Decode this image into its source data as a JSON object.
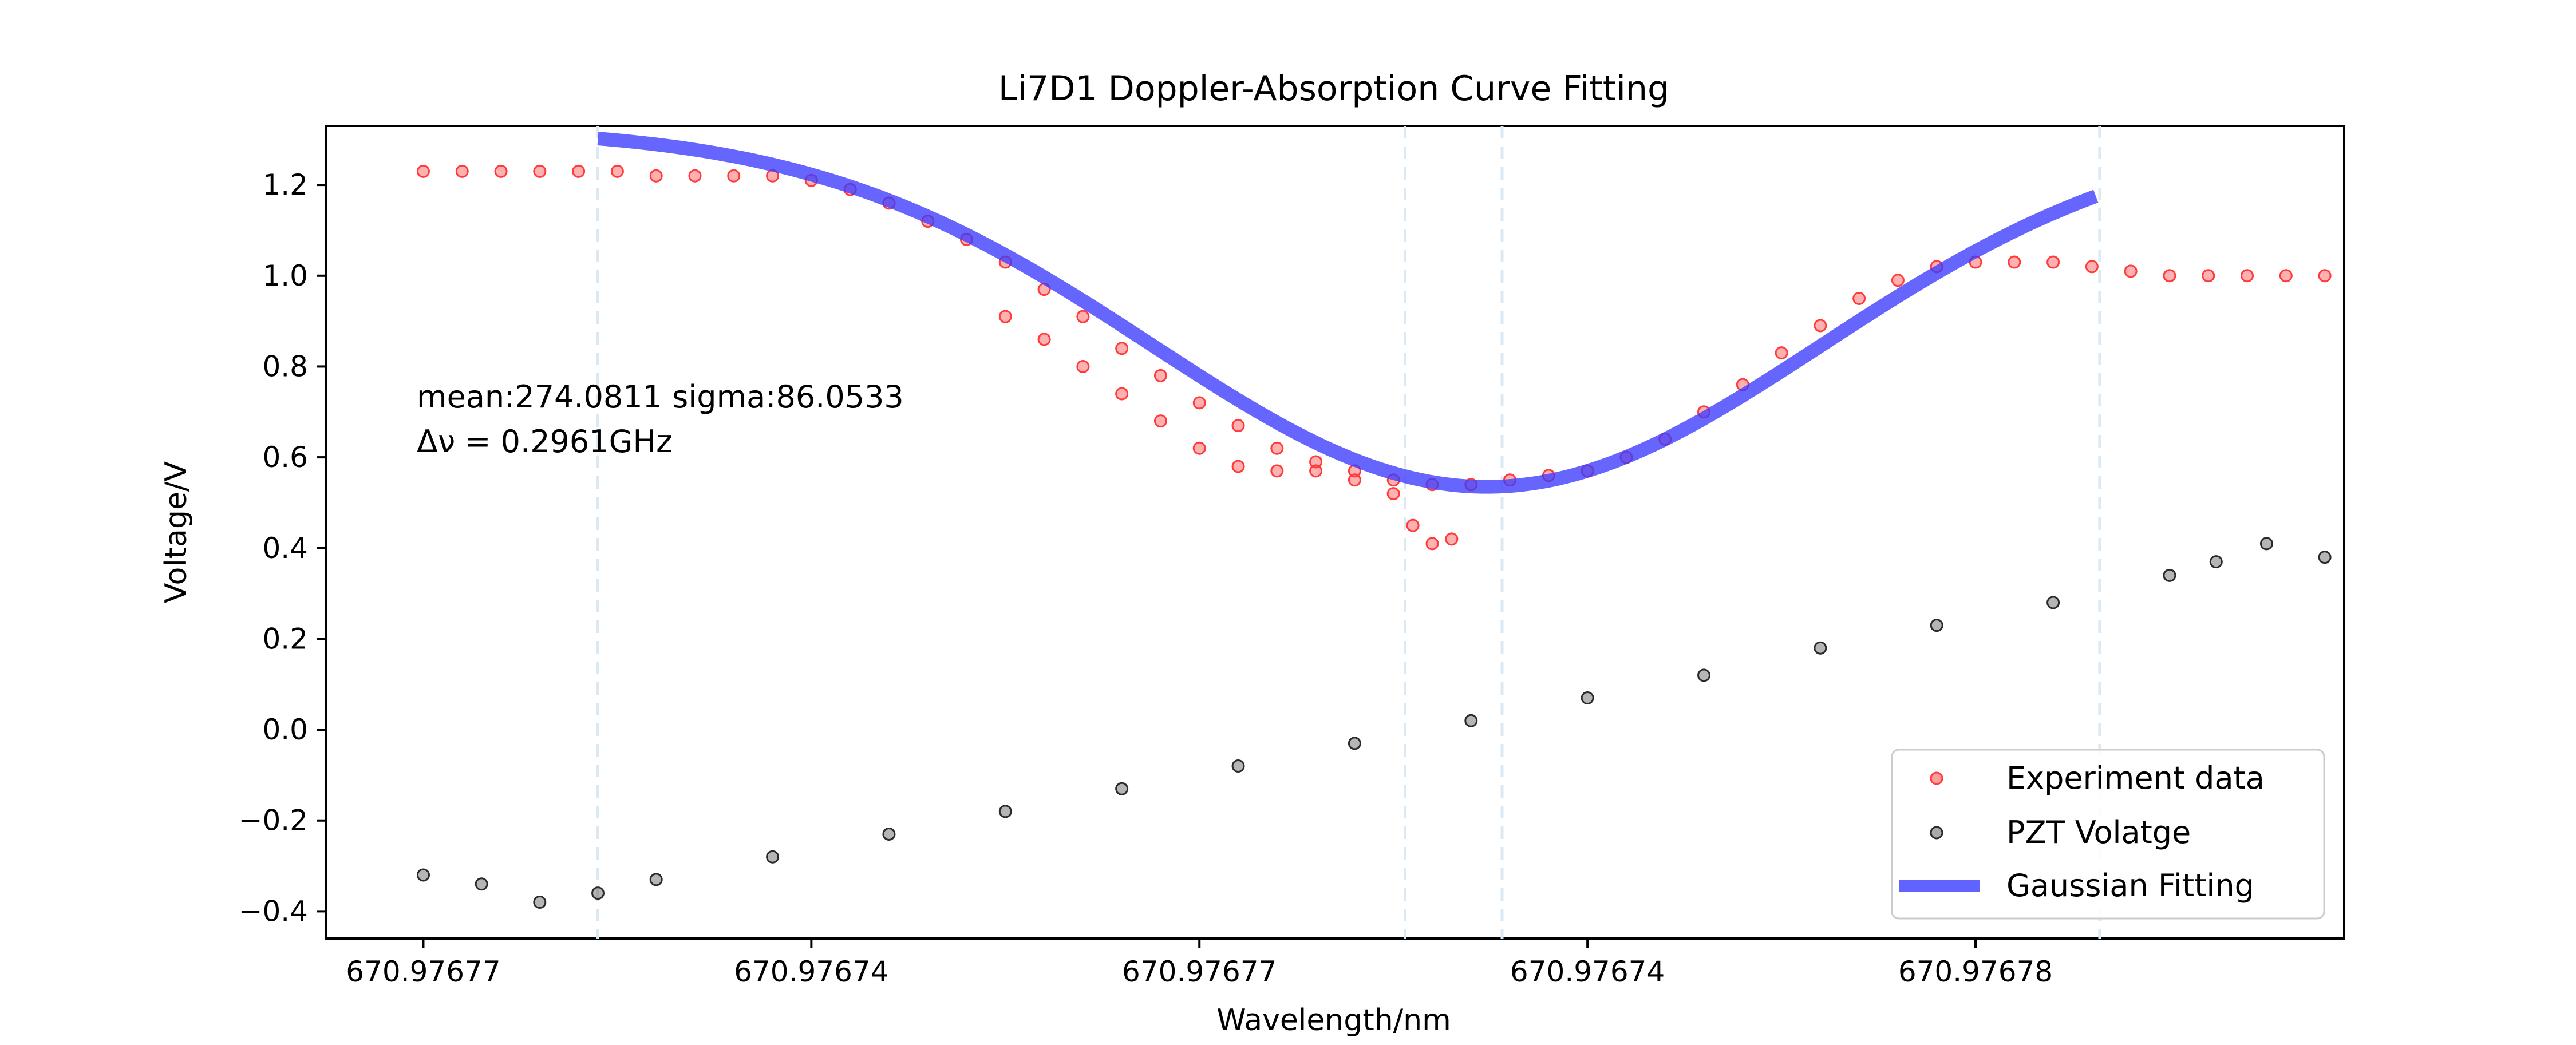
{
  "chart_data": {
    "type": "scatter",
    "title": "Li7D1 Doppler-Absorption Curve Fitting",
    "xlabel": "Wavelength/nm",
    "ylabel": "Voltage/V",
    "xlim": [
      -25,
      495
    ],
    "ylim": [
      -0.46,
      1.33
    ],
    "x_ticks": [
      {
        "value": 0,
        "label": "670.97677"
      },
      {
        "value": 100,
        "label": "670.97674"
      },
      {
        "value": 200,
        "label": "670.97677"
      },
      {
        "value": 300,
        "label": "670.97674"
      },
      {
        "value": 400,
        "label": "670.97678"
      }
    ],
    "y_ticks": [
      {
        "value": -0.4,
        "label": "−0.4"
      },
      {
        "value": -0.2,
        "label": "−0.2"
      },
      {
        "value": 0.0,
        "label": "0.0"
      },
      {
        "value": 0.2,
        "label": "0.2"
      },
      {
        "value": 0.4,
        "label": "0.4"
      },
      {
        "value": 0.6,
        "label": "0.6"
      },
      {
        "value": 0.8,
        "label": "0.8"
      },
      {
        "value": 1.0,
        "label": "1.0"
      },
      {
        "value": 1.2,
        "label": "1.2"
      }
    ],
    "vlines": [
      45,
      253,
      278,
      432
    ],
    "annotations": [
      "mean:274.0811 sigma:86.0533",
      "Δν = 0.2961GHz"
    ],
    "legend_position": "lower-right",
    "grid": false,
    "series": [
      {
        "name": "Experiment data",
        "kind": "scatter",
        "color": "#ff3b3b",
        "x": [
          0,
          10,
          20,
          30,
          40,
          50,
          60,
          70,
          80,
          90,
          100,
          110,
          120,
          130,
          140,
          150,
          160,
          170,
          180,
          190,
          200,
          210,
          220,
          230,
          240,
          250,
          260,
          270,
          280,
          290,
          300,
          310,
          320,
          330,
          340,
          350,
          360,
          370,
          380,
          390,
          400,
          410,
          420,
          430,
          440,
          450,
          460,
          470,
          480,
          490,
          150,
          160,
          170,
          180,
          190,
          200,
          210,
          220,
          230,
          240,
          250,
          255,
          260,
          265
        ],
        "y": [
          1.23,
          1.23,
          1.23,
          1.23,
          1.23,
          1.23,
          1.22,
          1.22,
          1.22,
          1.22,
          1.21,
          1.19,
          1.16,
          1.12,
          1.08,
          1.03,
          0.97,
          0.91,
          0.84,
          0.78,
          0.72,
          0.67,
          0.62,
          0.59,
          0.57,
          0.55,
          0.54,
          0.54,
          0.55,
          0.56,
          0.57,
          0.6,
          0.64,
          0.7,
          0.76,
          0.83,
          0.89,
          0.95,
          0.99,
          1.02,
          1.03,
          1.03,
          1.03,
          1.02,
          1.01,
          1.0,
          1.0,
          1.0,
          1.0,
          1.0,
          0.91,
          0.86,
          0.8,
          0.74,
          0.68,
          0.62,
          0.58,
          0.57,
          0.57,
          0.55,
          0.52,
          0.45,
          0.41,
          0.42
        ]
      },
      {
        "name": "PZT Volatge",
        "kind": "scatter",
        "color": "#2a2a2a",
        "x": [
          0,
          15,
          30,
          45,
          60,
          90,
          120,
          150,
          180,
          210,
          240,
          270,
          300,
          330,
          360,
          390,
          420,
          450,
          462,
          475,
          490
        ],
        "y": [
          -0.32,
          -0.34,
          -0.38,
          -0.36,
          -0.33,
          -0.28,
          -0.23,
          -0.18,
          -0.13,
          -0.08,
          -0.03,
          0.02,
          0.07,
          0.12,
          0.18,
          0.23,
          0.28,
          0.34,
          0.37,
          0.41,
          0.38
        ]
      },
      {
        "name": "Gaussian Fitting",
        "kind": "line",
        "color": "#3b3bff"
      }
    ],
    "fit": {
      "mean": 274.0811,
      "sigma": 86.0533,
      "x_start": 45,
      "x_end": 432
    }
  }
}
